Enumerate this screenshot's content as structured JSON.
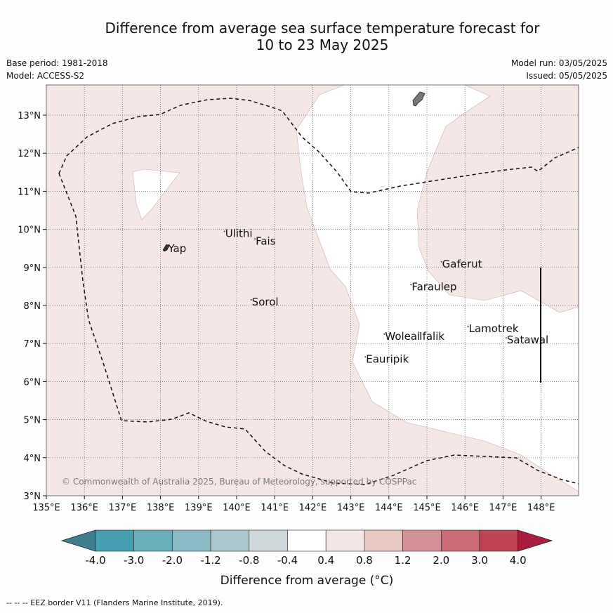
{
  "title": {
    "line1": "Difference from average sea surface temperature forecast for",
    "line2": "10 to 23 May 2025"
  },
  "meta": {
    "base_period": "Base period: 1981-2018",
    "model": "Model: ACCESS-S2",
    "model_run": "Model run: 03/05/2025",
    "issued": "Issued: 05/05/2025"
  },
  "map": {
    "lon_range": [
      135,
      149
    ],
    "lat_range": [
      3,
      13.8
    ],
    "lon_ticks": [
      "135°E",
      "136°E",
      "137°E",
      "138°E",
      "139°E",
      "140°E",
      "141°E",
      "142°E",
      "143°E",
      "144°E",
      "145°E",
      "146°E",
      "147°E",
      "148°E"
    ],
    "lat_ticks": [
      "13°N",
      "12°N",
      "11°N",
      "10°N",
      "9°N",
      "8°N",
      "7°N",
      "6°N",
      "5°N",
      "4°N",
      "3°N"
    ],
    "places": [
      {
        "name": "Ulithi",
        "lon": 139.7,
        "lat": 9.8
      },
      {
        "name": "Fais",
        "lon": 140.5,
        "lat": 9.6
      },
      {
        "name": "Yap",
        "lon": 138.2,
        "lat": 9.4
      },
      {
        "name": "Sorol",
        "lon": 140.4,
        "lat": 8.0
      },
      {
        "name": "Gaferut",
        "lon": 145.4,
        "lat": 9.0
      },
      {
        "name": "Faraulep",
        "lon": 144.6,
        "lat": 8.4
      },
      {
        "name": "Woleai",
        "lon": 143.9,
        "lat": 7.1
      },
      {
        "name": "Ifalik",
        "lon": 144.8,
        "lat": 7.1
      },
      {
        "name": "Lamotrek",
        "lon": 146.1,
        "lat": 7.3
      },
      {
        "name": "Satawal",
        "lon": 147.1,
        "lat": 7.0
      },
      {
        "name": "Eauripik",
        "lon": 143.4,
        "lat": 6.5
      }
    ],
    "copyright": "© Commonwealth of Australia 2025, Bureau of Meteorology, supported by COSPPac",
    "anomaly_band": "0.4 to 0.8"
  },
  "colorbar": {
    "ticks": [
      "-4.0",
      "-3.0",
      "-2.0",
      "-1.2",
      "-0.8",
      "-0.4",
      "0.4",
      "0.8",
      "1.2",
      "2.0",
      "3.0",
      "4.0"
    ],
    "colors": [
      "#3f7e8e",
      "#47a0b2",
      "#6aaebd",
      "#8ab8c4",
      "#aac7cd",
      "#cfd8da",
      "#ffffff",
      "#f4e7e6",
      "#e8c6c1",
      "#d59198",
      "#cb6a74",
      "#bf4555",
      "#ab1d3c"
    ],
    "title": "Difference from average (°C)"
  },
  "footnote": "--  --  -- EEZ border V11 (Flanders Marine Institute, 2019)."
}
